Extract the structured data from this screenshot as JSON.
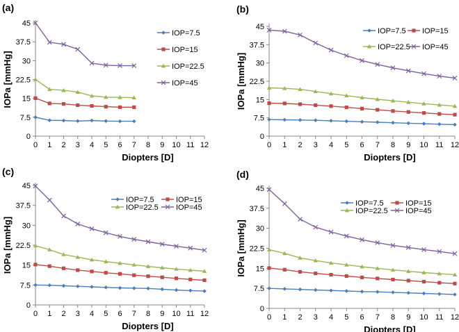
{
  "chart_data": [
    {
      "type": "line",
      "panel_label": "(a)",
      "ylabel": "IOPa [mmHg]",
      "xlabel": "Diopters [D]",
      "ylim": [
        0,
        45
      ],
      "yticks": [
        "0",
        "7.5",
        "15",
        "22.5",
        "30",
        "37.5",
        "45"
      ],
      "xlim": [
        0,
        12
      ],
      "xticks": [
        "0",
        "1",
        "2",
        "3",
        "4",
        "5",
        "6",
        "7",
        "8",
        "9",
        "10",
        "11",
        "12"
      ],
      "legend_layout": "vertical",
      "series": [
        {
          "name": "IOP=7.5",
          "color": "#4a7ebb",
          "marker": "diamond",
          "x": [
            0,
            1,
            2,
            3,
            4,
            5,
            6,
            7
          ],
          "values": [
            7.5,
            6.3,
            6.2,
            6.0,
            6.2,
            6.0,
            5.9,
            5.9
          ]
        },
        {
          "name": "IOP=15",
          "color": "#be4b48",
          "marker": "square",
          "x": [
            0,
            1,
            2,
            3,
            4,
            5,
            6,
            7
          ],
          "values": [
            15.1,
            13.0,
            12.8,
            12.3,
            12.0,
            11.7,
            11.5,
            11.5
          ]
        },
        {
          "name": "IOP=22.5",
          "color": "#98b954",
          "marker": "triangle",
          "x": [
            0,
            1,
            2,
            3,
            4,
            5,
            6,
            7
          ],
          "values": [
            22.5,
            18.6,
            18.2,
            17.5,
            16.0,
            15.5,
            15.4,
            15.3
          ]
        },
        {
          "name": "IOP=45",
          "color": "#7d60a0",
          "marker": "x",
          "x": [
            0,
            1,
            2,
            3,
            4,
            5,
            6,
            7
          ],
          "values": [
            45.0,
            37.3,
            36.5,
            34.5,
            29.0,
            28.2,
            28.0,
            28.0
          ]
        }
      ]
    },
    {
      "type": "line",
      "panel_label": "(b)",
      "ylabel": "IOPa [mmHg]",
      "xlabel": "Diopters [D]",
      "ylim": [
        0,
        45
      ],
      "yticks": [
        "0",
        "7.5",
        "15",
        "22.5",
        "30",
        "37.5",
        "45"
      ],
      "xlim": [
        0,
        12
      ],
      "xticks": [
        "0",
        "1",
        "2",
        "3",
        "4",
        "5",
        "6",
        "7",
        "8",
        "9",
        "10",
        "11",
        "12"
      ],
      "legend_layout": "grid",
      "series": [
        {
          "name": "IOP=7.5",
          "color": "#4a7ebb",
          "marker": "diamond",
          "x": [
            0,
            1,
            2,
            3,
            4,
            5,
            6,
            7,
            8,
            9,
            10,
            11,
            12
          ],
          "values": [
            6.8,
            6.7,
            6.6,
            6.5,
            6.3,
            6.1,
            5.9,
            5.7,
            5.5,
            5.3,
            5.1,
            4.9,
            4.7
          ]
        },
        {
          "name": "IOP=15",
          "color": "#be4b48",
          "marker": "square",
          "x": [
            0,
            1,
            2,
            3,
            4,
            5,
            6,
            7,
            8,
            9,
            10,
            11,
            12
          ],
          "values": [
            13.5,
            13.4,
            13.1,
            12.7,
            12.3,
            11.8,
            11.3,
            10.8,
            10.3,
            9.9,
            9.5,
            9.1,
            8.8
          ]
        },
        {
          "name": "IOP=22.5",
          "color": "#98b954",
          "marker": "triangle",
          "x": [
            0,
            1,
            2,
            3,
            4,
            5,
            6,
            7,
            8,
            9,
            10,
            11,
            12
          ],
          "values": [
            19.8,
            19.6,
            19.2,
            18.3,
            17.4,
            16.6,
            15.8,
            15.1,
            14.5,
            13.9,
            13.3,
            12.8,
            12.3
          ]
        },
        {
          "name": "IOP=45",
          "color": "#7d60a0",
          "marker": "x",
          "x": [
            0,
            1,
            2,
            3,
            4,
            5,
            6,
            7,
            8,
            9,
            10,
            11,
            12
          ],
          "values": [
            43.5,
            43.0,
            41.5,
            38.2,
            35.3,
            33.0,
            31.0,
            29.4,
            28.0,
            26.8,
            25.6,
            24.6,
            23.8
          ]
        }
      ]
    },
    {
      "type": "line",
      "panel_label": "(c)",
      "ylabel": "IOPa [mmHg]",
      "xlabel": "Diopters [D]",
      "ylim": [
        0,
        45
      ],
      "yticks": [
        "0",
        "7.5",
        "15",
        "22.5",
        "30",
        "37.5",
        "45"
      ],
      "xlim": [
        0,
        12
      ],
      "xticks": [
        "0",
        "1",
        "2",
        "3",
        "4",
        "5",
        "6",
        "7",
        "8",
        "9",
        "10",
        "11",
        "12"
      ],
      "legend_layout": "grid",
      "series": [
        {
          "name": "IOP=7.5",
          "color": "#4a7ebb",
          "marker": "diamond",
          "x": [
            0,
            1,
            2,
            3,
            4,
            5,
            6,
            7,
            8,
            9,
            10,
            11,
            12
          ],
          "values": [
            7.5,
            7.4,
            7.2,
            7.0,
            6.8,
            6.6,
            6.4,
            6.3,
            6.2,
            5.9,
            5.6,
            5.4,
            5.2
          ]
        },
        {
          "name": "IOP=15",
          "color": "#be4b48",
          "marker": "square",
          "x": [
            0,
            1,
            2,
            3,
            4,
            5,
            6,
            7,
            8,
            9,
            10,
            11,
            12
          ],
          "values": [
            15.2,
            14.6,
            13.8,
            13.1,
            12.6,
            12.1,
            11.7,
            11.2,
            10.8,
            10.4,
            10.0,
            9.6,
            9.3
          ]
        },
        {
          "name": "IOP=22.5",
          "color": "#98b954",
          "marker": "triangle",
          "x": [
            0,
            1,
            2,
            3,
            4,
            5,
            6,
            7,
            8,
            9,
            10,
            11,
            12
          ],
          "values": [
            22.3,
            20.8,
            19.0,
            18.0,
            17.0,
            16.3,
            15.7,
            15.1,
            14.5,
            14.0,
            13.5,
            13.1,
            12.7
          ]
        },
        {
          "name": "IOP=45",
          "color": "#7d60a0",
          "marker": "x",
          "x": [
            0,
            1,
            2,
            3,
            4,
            5,
            6,
            7,
            8,
            9,
            10,
            11,
            12
          ],
          "values": [
            44.8,
            39.5,
            33.5,
            30.5,
            28.7,
            27.2,
            25.8,
            24.7,
            23.8,
            22.9,
            22.1,
            21.4,
            20.6
          ]
        }
      ]
    },
    {
      "type": "line",
      "panel_label": "(d)",
      "ylabel": "IOPa [mmHg]",
      "xlabel": "Diopters [D]",
      "ylim": [
        0,
        45
      ],
      "yticks": [
        "0",
        "7.5",
        "15",
        "22.5",
        "30",
        "37.5",
        "45"
      ],
      "xlim": [
        0,
        12
      ],
      "xticks": [
        "0",
        "1",
        "2",
        "3",
        "4",
        "5",
        "6",
        "7",
        "8",
        "9",
        "10",
        "11",
        "12"
      ],
      "legend_layout": "grid",
      "series": [
        {
          "name": "IOP=7.5",
          "color": "#4a7ebb",
          "marker": "diamond",
          "x": [
            0,
            1,
            2,
            3,
            4,
            5,
            6,
            7,
            8,
            9,
            10,
            11,
            12
          ],
          "values": [
            7.5,
            7.3,
            7.1,
            6.9,
            6.7,
            6.5,
            6.3,
            6.2,
            6.0,
            5.8,
            5.6,
            5.4,
            5.2
          ]
        },
        {
          "name": "IOP=15",
          "color": "#be4b48",
          "marker": "square",
          "x": [
            0,
            1,
            2,
            3,
            4,
            5,
            6,
            7,
            8,
            9,
            10,
            11,
            12
          ],
          "values": [
            15.1,
            14.5,
            13.7,
            13.1,
            12.6,
            12.1,
            11.6,
            11.2,
            10.8,
            10.4,
            10.0,
            9.6,
            9.3
          ]
        },
        {
          "name": "IOP=22.5",
          "color": "#98b954",
          "marker": "triangle",
          "x": [
            0,
            1,
            2,
            3,
            4,
            5,
            6,
            7,
            8,
            9,
            10,
            11,
            12
          ],
          "values": [
            22.0,
            20.6,
            18.9,
            17.9,
            17.0,
            16.3,
            15.6,
            15.0,
            14.4,
            13.9,
            13.4,
            13.0,
            12.6
          ]
        },
        {
          "name": "IOP=45",
          "color": "#7d60a0",
          "marker": "x",
          "x": [
            0,
            1,
            2,
            3,
            4,
            5,
            6,
            7,
            8,
            9,
            10,
            11,
            12
          ],
          "values": [
            44.5,
            39.2,
            33.4,
            30.4,
            28.6,
            27.1,
            25.7,
            24.6,
            23.6,
            22.8,
            22.0,
            21.3,
            20.5
          ]
        }
      ]
    }
  ]
}
